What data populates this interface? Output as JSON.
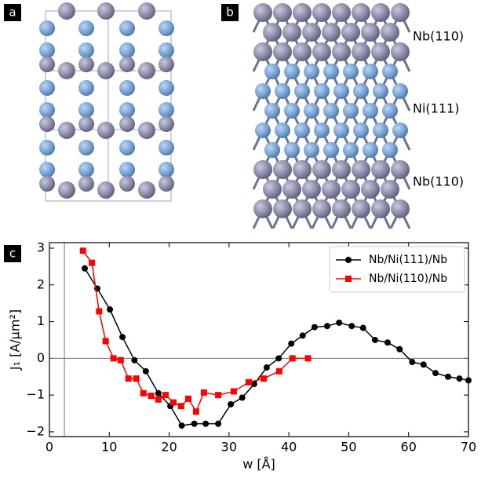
{
  "panel_labels": [
    "a",
    "b",
    "c"
  ],
  "layer_labels": [
    "Nb(110)",
    "Ni(111)",
    "Nb(110)"
  ],
  "chart_data": {
    "type": "line",
    "xlabel": "w [Å]",
    "ylabel": "J₁ [A/μm²]",
    "xlim": [
      0,
      70
    ],
    "ylim": [
      -2.13,
      3.15
    ],
    "xticks": [
      0,
      10,
      20,
      30,
      40,
      50,
      60,
      70
    ],
    "yticks": [
      {
        "value": -2,
        "label": "−2"
      },
      {
        "value": -1,
        "label": "−1"
      },
      0,
      1,
      2,
      3
    ],
    "reference_lines": {
      "y": 0,
      "x": 2.5
    },
    "legend": "upper right",
    "series": [
      {
        "name": "Nb/Ni(111)/Nb",
        "color": "#000000",
        "marker": "circle",
        "x": [
          5.9,
          8.0,
          10.1,
          12.2,
          14.2,
          16.1,
          18.2,
          20.2,
          22.1,
          24.2,
          26.1,
          28.2,
          30.3,
          32.2,
          34.2,
          36.3,
          38.3,
          40.4,
          42.3,
          44.3,
          46.4,
          48.4,
          50.5,
          52.4,
          54.4,
          56.5,
          58.5,
          60.6,
          62.5,
          64.5,
          66.6,
          68.5,
          70
        ],
        "values": [
          2.45,
          1.9,
          1.33,
          0.58,
          -0.05,
          -0.35,
          -0.95,
          -1.3,
          -1.83,
          -1.78,
          -1.78,
          -1.78,
          -1.25,
          -1.07,
          -0.7,
          -0.25,
          0.0,
          0.4,
          0.62,
          0.85,
          0.88,
          0.97,
          0.88,
          0.83,
          0.5,
          0.43,
          0.25,
          -0.1,
          -0.17,
          -0.4,
          -0.5,
          -0.55,
          -0.6
        ]
      },
      {
        "name": "Nb/Ni(110)/Nb",
        "color": "#ff0000",
        "marker": "square",
        "x": [
          5.6,
          7.1,
          8.3,
          9.4,
          10.7,
          11.9,
          13.2,
          14.5,
          15.7,
          17.0,
          18.2,
          19.4,
          20.7,
          22.0,
          23.2,
          24.5,
          25.8,
          28.2,
          30.8,
          33.3,
          35.8,
          38.4,
          40.6,
          43.2
        ],
        "values": [
          2.93,
          2.6,
          1.28,
          0.47,
          0.0,
          -0.05,
          -0.55,
          -0.55,
          -0.95,
          -1.02,
          -1.12,
          -1.0,
          -1.2,
          -1.3,
          -1.1,
          -1.45,
          -0.93,
          -1.0,
          -0.9,
          -0.65,
          -0.55,
          -0.35,
          0.0,
          0.0
        ]
      }
    ]
  }
}
